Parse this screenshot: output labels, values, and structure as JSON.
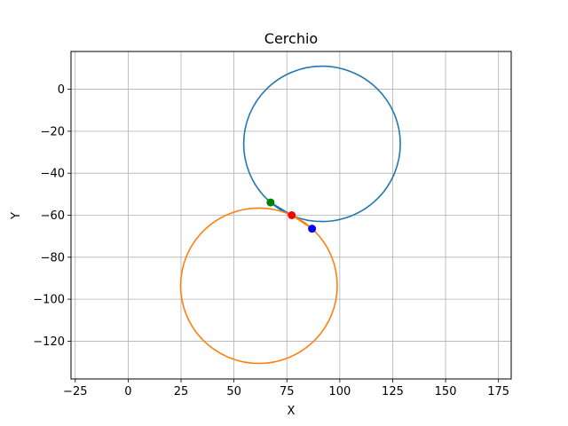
{
  "chart_data": {
    "type": "scatter",
    "title": "Cerchio",
    "xlabel": "X",
    "ylabel": "Y",
    "xlim": [
      -27,
      181
    ],
    "ylim": [
      -138,
      18
    ],
    "xticks": [
      -25,
      0,
      25,
      50,
      75,
      100,
      125,
      150,
      175
    ],
    "yticks": [
      0,
      -20,
      -40,
      -60,
      -80,
      -100,
      -120
    ],
    "grid": true,
    "series": [
      {
        "kind": "circle",
        "color": "#1f77b4",
        "center": [
          91.6,
          -26.0
        ],
        "radius": 37.0,
        "extra_segment": [
          [
            67.3,
            -53.9
          ],
          [
            77.3,
            -60.0
          ]
        ]
      },
      {
        "kind": "circle",
        "color": "#ff7f0e",
        "center": [
          61.8,
          -93.6
        ],
        "radius": 37.0,
        "extra_segment": [
          [
            77.3,
            -60.0
          ],
          [
            86.9,
            -66.4
          ]
        ]
      }
    ],
    "points": [
      {
        "x": 67.3,
        "y": -53.9,
        "color": "#007f00"
      },
      {
        "x": 77.3,
        "y": -60.0,
        "color": "#ff0000"
      },
      {
        "x": 86.9,
        "y": -66.4,
        "color": "#0000ff"
      }
    ]
  }
}
